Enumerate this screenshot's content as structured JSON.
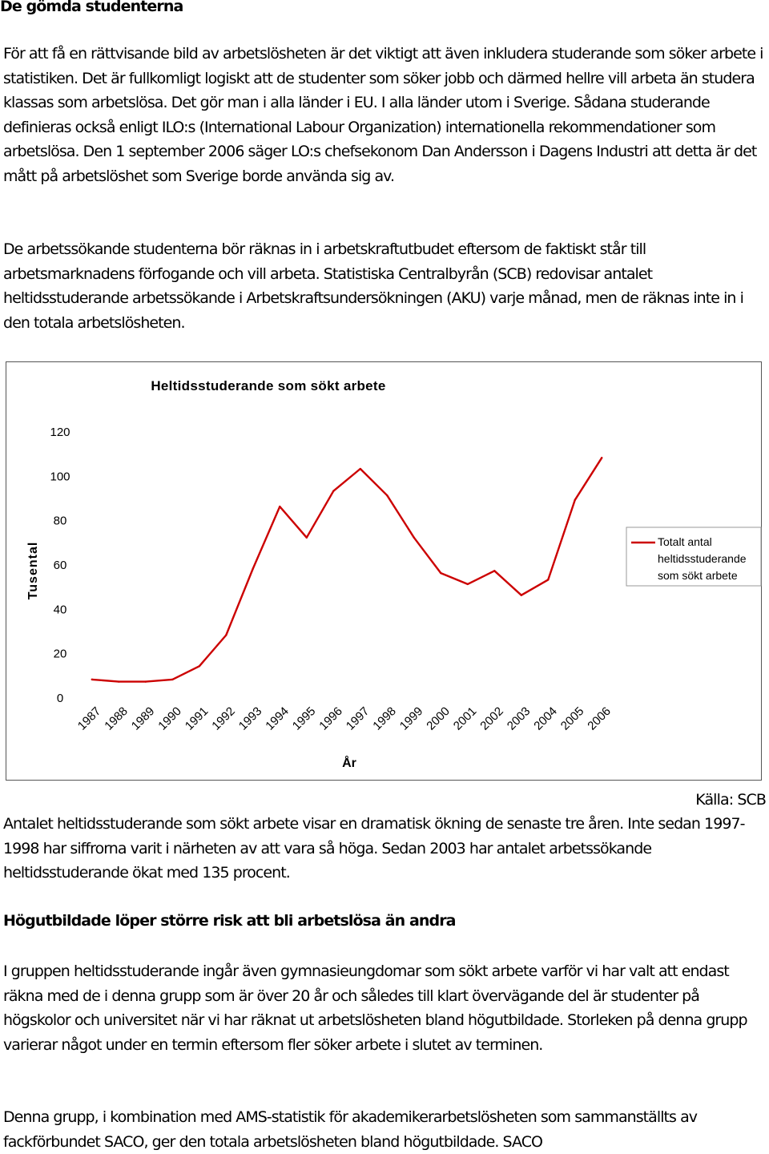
{
  "heading1": "De gömda studenterna",
  "para1": "För att få en rättvisande bild av arbetslösheten är det viktigt att även inkludera studerande som söker arbete i statistiken. Det är fullkomligt logiskt att de studenter som söker jobb och därmed hellre vill arbeta än studera klassas som arbetslösa. Det gör man i alla länder i EU. I alla länder utom i Sverige. Sådana studerande definieras också enligt ILO:s (International Labour Organization) internationella rekommendationer som arbetslösa. Den 1 september 2006 säger LO:s chefsekonom Dan Andersson i Dagens Industri att detta är det mått på arbetslöshet som Sverige borde använda sig av.",
  "para2": "De arbetssökande studenterna bör räknas in i arbetskraftutbudet eftersom de faktiskt står till arbetsmarknadens förfogande och vill arbeta. Statistiska Centralbyrån (SCB) redovisar antalet heltidsstuderande arbetssökande i Arbetskraftsundersökningen (AKU) varje månad, men de räknas inte in i den totala arbetslösheten.",
  "source": "Källa: SCB",
  "para3": "Antalet heltidsstuderande som sökt arbete visar en dramatisk ökning de senaste tre åren. Inte sedan 1997-1998 har siffrorna varit i närheten av att vara så höga. Sedan 2003 har antalet arbetssökande heltidsstuderande ökat med 135 procent.",
  "heading2": "Högutbildade löper större risk att bli arbetslösa än andra",
  "para4": "I gruppen heltidsstuderande ingår även gymnasieungdomar som sökt arbete varför vi har valt att endast räkna med de i denna grupp som är över 20 år och således till klart övervägande del är studenter på högskolor och universitet när vi har räknat ut arbetslösheten bland högutbildade. Storleken på denna grupp varierar något under en termin eftersom fler söker arbete i slutet av terminen.",
  "para5": "Denna grupp, i kombination med AMS-statistik för akademikerarbetslösheten som sammanställts av fackförbundet SACO, ger den totala arbetslösheten bland högutbildade. SACO",
  "chart_data": {
    "type": "line",
    "title": "Heltidsstuderande som sökt arbete",
    "xlabel": "År",
    "ylabel": "Tusental",
    "ylim": [
      0,
      120
    ],
    "yticks": [
      0,
      20,
      40,
      60,
      80,
      100,
      120
    ],
    "grid": false,
    "legend_position": "right",
    "categories": [
      "1987",
      "1988",
      "1989",
      "1990",
      "1991",
      "1992",
      "1993",
      "1994",
      "1995",
      "1996",
      "1997",
      "1998",
      "1999",
      "2000",
      "2001",
      "2002",
      "2003",
      "2004",
      "2005",
      "2006"
    ],
    "series": [
      {
        "name": "Totalt antal heltidsstuderande som sökt arbete",
        "legend_lines": [
          "Totalt antal",
          "heltidsstuderande",
          "som sökt arbete"
        ],
        "color": "#cc0000",
        "values": [
          8,
          7,
          7,
          8,
          14,
          28,
          58,
          86,
          72,
          93,
          103,
          91,
          72,
          56,
          51,
          57,
          46,
          53,
          89,
          108
        ]
      }
    ]
  }
}
